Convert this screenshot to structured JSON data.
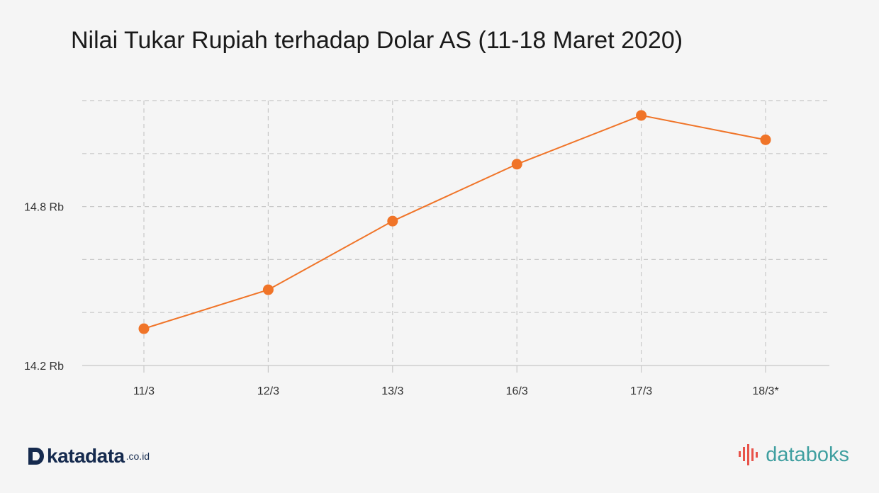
{
  "chart_data": {
    "type": "line",
    "title": "Nilai Tukar Rupiah terhadap Dolar AS (11-18 Maret 2020)",
    "xlabel": "",
    "ylabel": "",
    "categories": [
      "11/3",
      "12/3",
      "13/3",
      "16/3",
      "17/3",
      "18/3*"
    ],
    "series": [
      {
        "values": [
          14339,
          14486,
          14745,
          14960,
          15144,
          15052
        ],
        "color": "#f07428"
      }
    ],
    "ylim": [
      14200,
      15200
    ],
    "y_ticks": [
      {
        "value": 14200,
        "label": "14.2 Rb"
      },
      {
        "value": 14400,
        "label": ""
      },
      {
        "value": 14600,
        "label": ""
      },
      {
        "value": 14800,
        "label": "14.8 Rb"
      },
      {
        "value": 15000,
        "label": ""
      },
      {
        "value": 15200,
        "label": ""
      }
    ],
    "grid": true,
    "legend": "none"
  },
  "branding": {
    "left_name": "katadata",
    "left_domain": ".co.id",
    "left_icon": "katadata-logo-icon",
    "right_name": "databoks",
    "right_icon": "databoks-logo-icon",
    "left_color": "#152a4e",
    "right_color": "#3f9fa0"
  }
}
